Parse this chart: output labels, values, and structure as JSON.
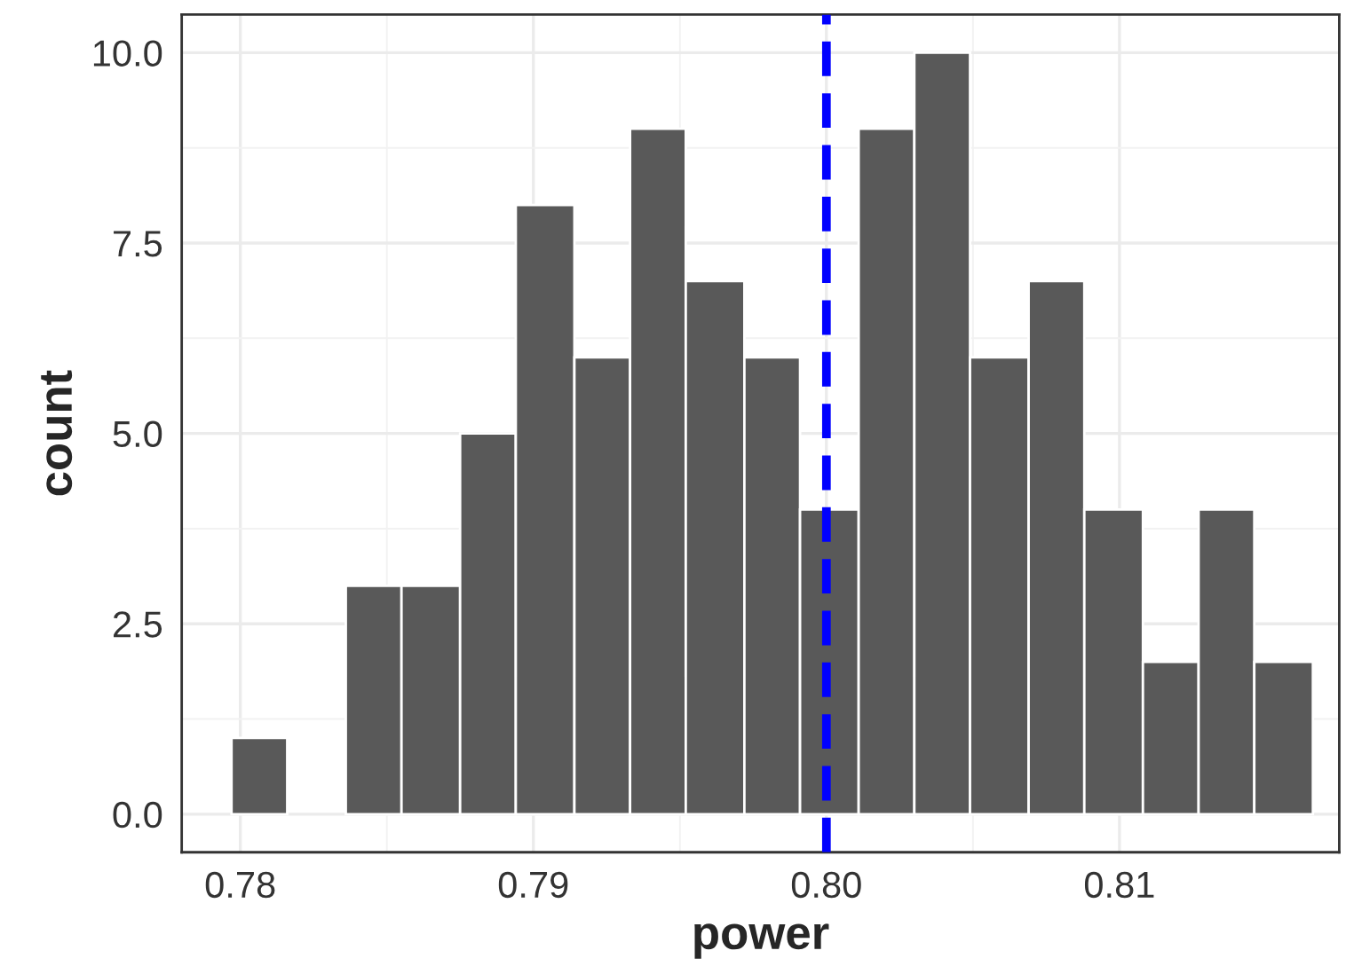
{
  "chart_data": {
    "type": "histogram",
    "xlabel": "power",
    "ylabel": "count",
    "bins": [
      0.7797,
      0.7816,
      0.7836,
      0.7855,
      0.7875,
      0.7894,
      0.7914,
      0.7933,
      0.7952,
      0.7972,
      0.7991,
      0.8011,
      0.803,
      0.8049,
      0.8069,
      0.8088,
      0.8108,
      0.8127,
      0.8146,
      0.8166
    ],
    "values": [
      1,
      0,
      3,
      3,
      5,
      8,
      6,
      9,
      7,
      6,
      4,
      9,
      10,
      6,
      7,
      4,
      2,
      4,
      2
    ],
    "color": "#595959",
    "xlim": [
      0.778,
      0.8175
    ],
    "xticks": [
      {
        "value": 0.78,
        "label": "0.78"
      },
      {
        "value": 0.79,
        "label": "0.79"
      },
      {
        "value": 0.8,
        "label": "0.80"
      },
      {
        "value": 0.81,
        "label": "0.81"
      }
    ],
    "ylim": [
      -0.5,
      10.5
    ],
    "yticks": [
      {
        "value": 0,
        "label": "0.0"
      },
      {
        "value": 2.5,
        "label": "2.5"
      },
      {
        "value": 5,
        "label": "5.0"
      },
      {
        "value": 7.5,
        "label": "7.5"
      },
      {
        "value": 10,
        "label": "10.0"
      }
    ],
    "ref_lines": [
      {
        "axis": "x",
        "value": 0.8,
        "color": "#0000ff",
        "line_style": "dashed"
      }
    ],
    "grid": true
  }
}
